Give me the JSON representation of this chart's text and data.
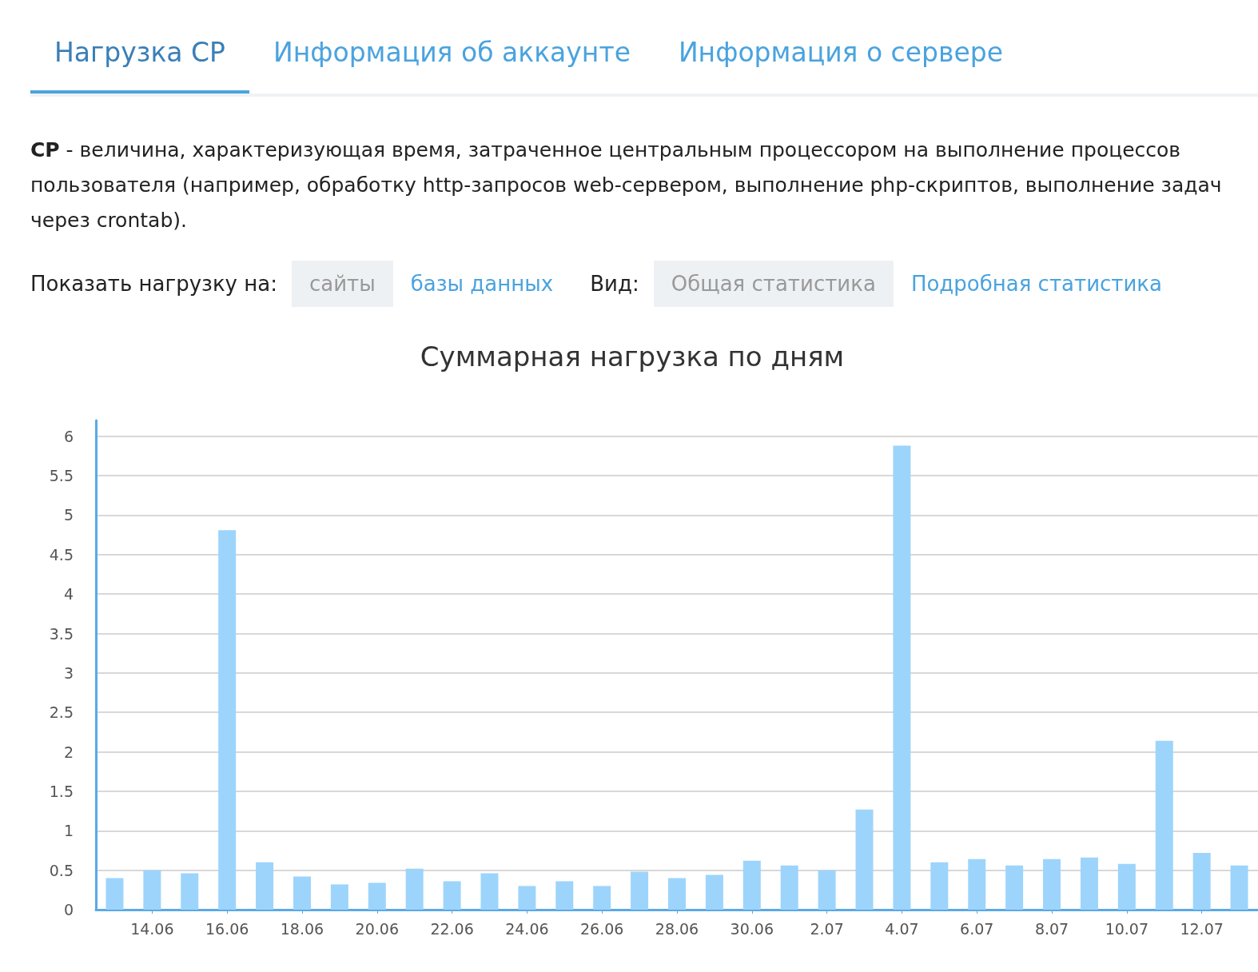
{
  "chart_data": {
    "type": "bar",
    "title": "Суммарная нагрузка по дням",
    "annotations": [
      "Нагрузка CP",
      "Информация об аккаунте",
      "Информация о сервере",
      "CP",
      " - величина, характеризующая время, затраченное центральным процессором на выполнение процессов пользователя (например, обработку http-запросов web-сервером, выполнение php-скриптов, выполнение задач через crontab).",
      "Показать нагрузку на:",
      "сайты",
      "базы данных",
      "Вид:",
      "Общая статистика",
      "Подробная статистика"
    ],
    "categories": [
      null,
      "14.06",
      null,
      "16.06",
      null,
      "18.06",
      null,
      "20.06",
      null,
      "22.06",
      null,
      "24.06",
      null,
      "26.06",
      null,
      "28.06",
      null,
      "30.06",
      null,
      "2.07",
      null,
      "4.07",
      null,
      "6.07",
      null,
      "8.07",
      null,
      "10.07",
      null,
      "12.07",
      null
    ],
    "values": [
      0.4,
      0.5,
      0.46,
      4.81,
      0.6,
      0.42,
      0.32,
      0.34,
      0.52,
      0.36,
      0.46,
      0.3,
      0.36,
      0.3,
      0.48,
      0.4,
      0.44,
      0.62,
      0.56,
      0.5,
      1.27,
      5.88,
      0.6,
      0.64,
      0.56,
      0.64,
      0.66,
      0.58,
      2.14,
      0.72,
      0.56
    ],
    "color": "#9dd4fb",
    "ylim": [
      0,
      6.2
    ],
    "yticks": [
      0,
      0.5,
      1,
      1.5,
      2,
      2.5,
      3,
      3.5,
      4,
      4.5,
      5,
      5.5,
      6
    ],
    "grid": "y"
  }
}
